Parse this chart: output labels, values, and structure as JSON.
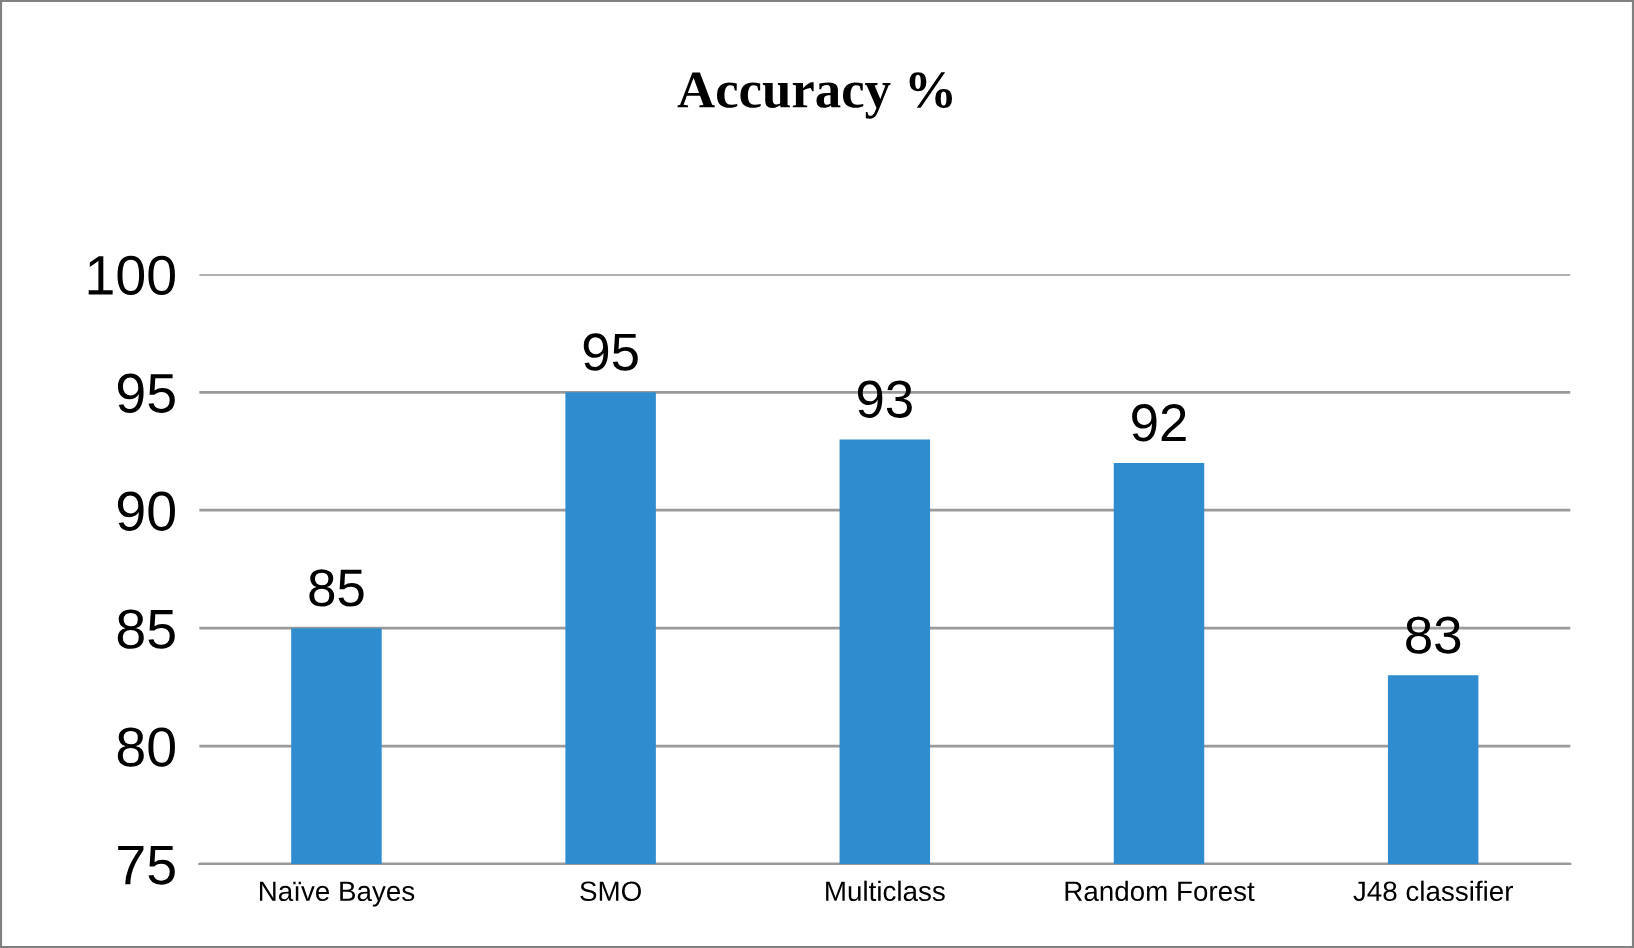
{
  "chart_data": {
    "type": "bar",
    "title": "Accuracy %",
    "categories": [
      "Naïve Bayes",
      "SMO",
      "Multiclass",
      "Random Forest",
      "J48 classifier"
    ],
    "values": [
      85,
      95,
      93,
      92,
      83
    ],
    "color": "#2f8ccf",
    "ylim": [
      75,
      100
    ],
    "yticks": [
      75,
      80,
      85,
      90,
      95,
      100
    ],
    "grid": "y",
    "data_labels": true,
    "legend": false
  }
}
